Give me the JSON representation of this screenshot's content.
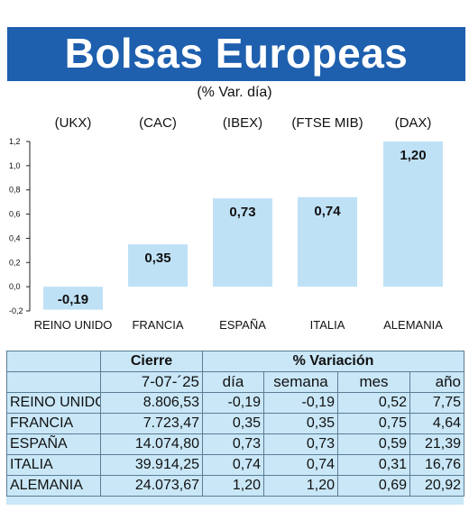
{
  "header": {
    "title": "Bolsas Europeas",
    "subtitle": "(% Var. día)"
  },
  "colors": {
    "banner": "#1e5fae",
    "bar": "#bfe1f6",
    "table_bg": "#c9e7f7"
  },
  "chart_data": {
    "type": "bar",
    "title": "Bolsas Europeas",
    "subtitle": "(% Var. día)",
    "index_names": [
      "(UKX)",
      "(CAC)",
      "(IBEX)",
      "(FTSE MIB)",
      "(DAX)"
    ],
    "categories": [
      "REINO UNIDO",
      "FRANCIA",
      "ESPAÑA",
      "ITALIA",
      "ALEMANIA"
    ],
    "values": [
      -0.19,
      0.35,
      0.73,
      0.74,
      1.2
    ],
    "value_labels": [
      "-0,19",
      "0,35",
      "0,73",
      "0,74",
      "1,20"
    ],
    "yticks": [
      1.2,
      1.0,
      0.8,
      0.6,
      0.4,
      0.2,
      0.0,
      -0.2
    ],
    "ytick_labels": [
      "1,2",
      "1,0",
      "0,8",
      "0,6",
      "0,4",
      "0,2",
      "0,0",
      "-0,2"
    ],
    "ylim": [
      -0.2,
      1.2
    ],
    "grid": false,
    "legend": "none"
  },
  "table": {
    "group_headers": {
      "close": "Cierre",
      "variation": "% Variación"
    },
    "date": "7-07-´25",
    "columns": [
      "día",
      "semana",
      "mes",
      "año"
    ],
    "rows": [
      {
        "country": "REINO UNIDO",
        "close": "8.806,53",
        "dia": "-0,19",
        "semana": "-0,19",
        "mes": "0,52",
        "ano": "7,75"
      },
      {
        "country": "FRANCIA",
        "close": "7.723,47",
        "dia": "0,35",
        "semana": "0,35",
        "mes": "0,75",
        "ano": "4,64"
      },
      {
        "country": "ESPAÑA",
        "close": "14.074,80",
        "dia": "0,73",
        "semana": "0,73",
        "mes": "0,59",
        "ano": "21,39"
      },
      {
        "country": "ITALIA",
        "close": "39.914,25",
        "dia": "0,74",
        "semana": "0,74",
        "mes": "0,31",
        "ano": "16,76"
      },
      {
        "country": "ALEMANIA",
        "close": "24.073,67",
        "dia": "1,20",
        "semana": "1,20",
        "mes": "0,69",
        "ano": "20,92"
      }
    ]
  }
}
